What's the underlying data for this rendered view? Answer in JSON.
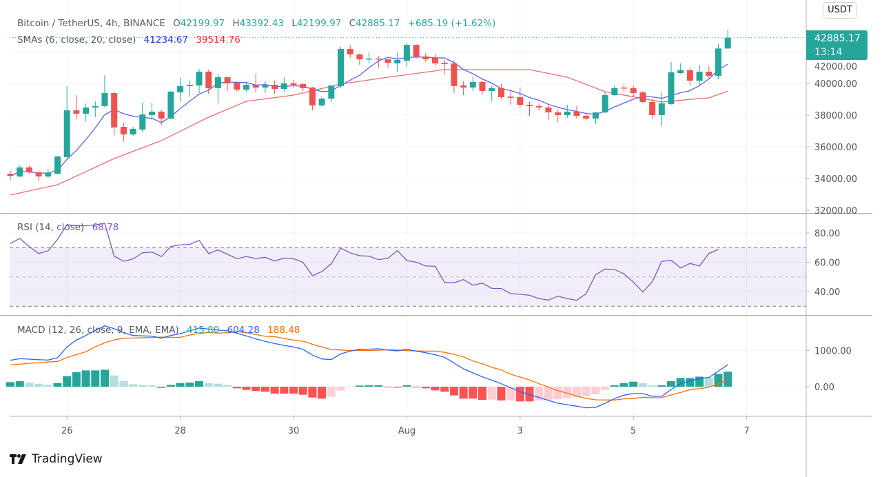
{
  "header": {
    "symbol": "Bitcoin / TetherUS, 4h, BINANCE",
    "open_label": "O",
    "open": "42199.97",
    "high_label": "H",
    "high": "43392.43",
    "low_label": "L",
    "low": "42199.97",
    "close_label": "C",
    "close": "42885.17",
    "change": "+685.19 (+1.62%)"
  },
  "sma_legend": {
    "label": "SMAs (6, close, 20, close)",
    "sma6": "41234.67",
    "sma20": "39514.76"
  },
  "rsi_legend": {
    "label": "RSI (14, close)",
    "value": "68.78"
  },
  "macd_legend": {
    "label": "MACD (12, 26, close, 9, EMA, EMA)",
    "histogram": "415.80",
    "macd": "604.28",
    "signal": "188.48"
  },
  "price_axis": {
    "currency": "USDT",
    "labels": [
      "42000.00",
      "40000.00",
      "38000.00",
      "36000.00",
      "34000.00",
      "32000.00"
    ],
    "last_price": "42885.17",
    "countdown": "13:14"
  },
  "rsi_axis": {
    "labels": [
      "80.00",
      "60.00",
      "40.00"
    ]
  },
  "macd_axis": {
    "labels": [
      "1000.00",
      "0.00"
    ]
  },
  "time_axis": [
    {
      "label": "26",
      "index": 7
    },
    {
      "label": "28",
      "index": 19
    },
    {
      "label": "30",
      "index": 31
    },
    {
      "label": "Aug",
      "index": 43
    },
    {
      "label": "3",
      "index": 55
    },
    {
      "label": "5",
      "index": 67
    },
    {
      "label": "7",
      "index": 79
    }
  ],
  "brand": "TradingView",
  "colors": {
    "up": "#26a69a",
    "down": "#ef5350",
    "sma6": "#5b62f5",
    "sma20": "#f26b6b",
    "rsi": "#7e57c2",
    "macd": "#2962ff",
    "signal": "#ff6d00",
    "hist_up_strong": "#26a69a",
    "hist_up_weak": "#b2dfdb",
    "hist_down_strong": "#ff5252",
    "hist_down_weak": "#ffcdd2"
  },
  "chart_data": [
    {
      "type": "candlestick",
      "ylim": [
        32000,
        44000
      ],
      "ohlc": [
        [
          34300,
          34480,
          33870,
          34170
        ],
        [
          34130,
          34830,
          34090,
          34700
        ],
        [
          34700,
          34830,
          34300,
          34390
        ],
        [
          34390,
          34440,
          33870,
          34130
        ],
        [
          34130,
          34610,
          34040,
          34350
        ],
        [
          34300,
          35430,
          34260,
          35390
        ],
        [
          35350,
          39830,
          35300,
          38300
        ],
        [
          38300,
          39260,
          37740,
          38090
        ],
        [
          38090,
          38740,
          37610,
          38480
        ],
        [
          38480,
          38870,
          37870,
          38570
        ],
        [
          38570,
          40520,
          38480,
          39390
        ],
        [
          39390,
          39480,
          36740,
          37220
        ],
        [
          37260,
          37520,
          36350,
          36780
        ],
        [
          36780,
          37260,
          36700,
          37130
        ],
        [
          37090,
          38780,
          36910,
          38040
        ],
        [
          38000,
          38780,
          37700,
          38220
        ],
        [
          38220,
          38350,
          37350,
          37780
        ],
        [
          37780,
          39520,
          37740,
          39480
        ],
        [
          39430,
          40350,
          38870,
          39830
        ],
        [
          39830,
          40170,
          39170,
          39910
        ],
        [
          39870,
          40910,
          39390,
          40740
        ],
        [
          40740,
          40870,
          39350,
          39700
        ],
        [
          39700,
          40610,
          38740,
          40390
        ],
        [
          40390,
          40430,
          39520,
          40000
        ],
        [
          40040,
          40130,
          39480,
          39610
        ],
        [
          39610,
          40090,
          39480,
          39910
        ],
        [
          39910,
          40610,
          39430,
          39740
        ],
        [
          39740,
          40130,
          39390,
          39910
        ],
        [
          39910,
          40170,
          39350,
          39650
        ],
        [
          39650,
          40390,
          39480,
          40000
        ],
        [
          40000,
          40220,
          39740,
          39910
        ],
        [
          39960,
          40000,
          39520,
          39700
        ],
        [
          39740,
          39780,
          38300,
          38610
        ],
        [
          38610,
          39170,
          38520,
          39040
        ],
        [
          39040,
          39870,
          38830,
          39870
        ],
        [
          39830,
          42300,
          39700,
          42170
        ],
        [
          42170,
          42430,
          41610,
          41830
        ],
        [
          41830,
          41870,
          41170,
          41520
        ],
        [
          41520,
          41960,
          41260,
          41570
        ],
        [
          41570,
          41740,
          41000,
          41520
        ],
        [
          41520,
          41570,
          41000,
          41300
        ],
        [
          41260,
          41960,
          40700,
          41480
        ],
        [
          41430,
          42570,
          41040,
          42430
        ],
        [
          42430,
          42480,
          41570,
          41700
        ],
        [
          41700,
          41910,
          41350,
          41520
        ],
        [
          41610,
          41830,
          41090,
          41260
        ],
        [
          41300,
          41480,
          40570,
          41220
        ],
        [
          41260,
          41430,
          39390,
          39830
        ],
        [
          39870,
          40130,
          39260,
          39740
        ],
        [
          39740,
          40430,
          39520,
          40090
        ],
        [
          40090,
          40170,
          39300,
          39520
        ],
        [
          39520,
          39830,
          38870,
          39700
        ],
        [
          39700,
          39960,
          39000,
          39130
        ],
        [
          39170,
          39520,
          38650,
          39090
        ],
        [
          39130,
          39740,
          38430,
          38650
        ],
        [
          38650,
          38830,
          37960,
          38570
        ],
        [
          38570,
          38740,
          38300,
          38480
        ],
        [
          38480,
          38650,
          37700,
          38170
        ],
        [
          38170,
          38350,
          37570,
          38000
        ],
        [
          38000,
          38650,
          37830,
          38220
        ],
        [
          38220,
          38570,
          37780,
          37960
        ],
        [
          37960,
          38170,
          37650,
          37780
        ],
        [
          37780,
          38170,
          37430,
          38170
        ],
        [
          38170,
          39430,
          38130,
          39260
        ],
        [
          39260,
          39870,
          39220,
          39700
        ],
        [
          39740,
          39960,
          39480,
          39700
        ],
        [
          39700,
          39870,
          39130,
          39390
        ],
        [
          39430,
          39520,
          38740,
          38830
        ],
        [
          38830,
          39000,
          37780,
          38000
        ],
        [
          38000,
          39430,
          37300,
          38740
        ],
        [
          38700,
          41350,
          38650,
          40700
        ],
        [
          40650,
          41260,
          40610,
          40830
        ],
        [
          40830,
          41000,
          39870,
          40170
        ],
        [
          40170,
          41170,
          39910,
          40740
        ],
        [
          40740,
          41090,
          40350,
          40480
        ],
        [
          40480,
          42480,
          40260,
          42199.97
        ],
        [
          42199.97,
          43392.43,
          42199.97,
          42885.17
        ]
      ],
      "sma20_samples": [
        [
          1,
          32960
        ],
        [
          6,
          33610
        ],
        [
          12,
          35260
        ],
        [
          17,
          36390
        ],
        [
          22,
          37870
        ],
        [
          26,
          38870
        ],
        [
          31,
          39260
        ],
        [
          36,
          39960
        ],
        [
          41,
          40390
        ],
        [
          47,
          40870
        ],
        [
          56,
          40870
        ],
        [
          60,
          40390
        ],
        [
          64,
          39480
        ],
        [
          70,
          38830
        ],
        [
          75,
          39090
        ],
        [
          77,
          39514.76
        ]
      ]
    },
    {
      "type": "line",
      "name": "RSI",
      "ylim": [
        20,
        90
      ],
      "bands": {
        "upper": 70,
        "middle": 50,
        "lower": 30
      },
      "values": [
        72.8,
        76.3,
        70.8,
        66,
        67.8,
        75.6,
        85.7,
        85,
        85,
        85.5,
        86.6,
        64.2,
        60.7,
        62.3,
        66.5,
        67,
        63.9,
        70.8,
        71.9,
        72.2,
        75,
        66,
        68.4,
        65.5,
        62.5,
        63.9,
        62.6,
        63.4,
        60.9,
        62.9,
        62.5,
        60,
        50.9,
        53.7,
        59,
        69.7,
        66.5,
        64.5,
        64.2,
        61.8,
        62.8,
        68,
        61.2,
        60.1,
        57.5,
        57.3,
        46.3,
        46,
        48.2,
        44.4,
        45.8,
        42.2,
        42.1,
        38.6,
        38.2,
        37.5,
        35.2,
        34.2,
        36.9,
        35.2,
        34.1,
        38.6,
        51.5,
        55.4,
        55.1,
        52.1,
        46.5,
        39.7,
        46.8,
        60.6,
        61.4,
        56.2,
        59.2,
        57.5,
        66.1,
        68.78
      ]
    },
    {
      "type": "bar+line",
      "name": "MACD",
      "ylim": [
        -1000,
        1900
      ],
      "macd": [
        728,
        772,
        760,
        745,
        734,
        798,
        1095,
        1285,
        1412,
        1550,
        1677,
        1601,
        1488,
        1412,
        1400,
        1393,
        1336,
        1412,
        1462,
        1538,
        1620,
        1589,
        1560,
        1538,
        1475,
        1400,
        1317,
        1250,
        1190,
        1140,
        1095,
        1032,
        873,
        766,
        747,
        905,
        981,
        1032,
        1035,
        1045,
        1010,
        987,
        1032,
        980,
        937,
        880,
        810,
        652,
        494,
        380,
        272,
        180,
        82,
        -30,
        -139,
        -220,
        -298,
        -377,
        -456,
        -497,
        -538,
        -582,
        -570,
        -456,
        -329,
        -234,
        -190,
        -190,
        -266,
        -266,
        -76,
        82,
        158,
        222,
        253,
        430,
        604.28
      ],
      "signal": [
        601,
        620,
        646,
        663,
        683,
        697,
        804,
        886,
        963,
        1101,
        1209,
        1291,
        1336,
        1342,
        1349,
        1355,
        1368,
        1361,
        1361,
        1424,
        1468,
        1494,
        1478,
        1487,
        1519,
        1489,
        1437,
        1389,
        1380,
        1330,
        1285,
        1254,
        1171,
        1095,
        1026,
        1013,
        994,
        1000,
        997,
        1007,
        1016,
        1012,
        994,
        986,
        981,
        981,
        949,
        893,
        823,
        709,
        633,
        534,
        462,
        343,
        266,
        185,
        82,
        -10,
        -108,
        -180,
        -259,
        -323,
        -361,
        -367,
        -367,
        -335,
        -329,
        -291,
        -304,
        -304,
        -228,
        -158,
        -82,
        -56,
        -13,
        76,
        188.48
      ],
      "histogram": [
        127,
        152,
        114,
        82,
        51,
        101,
        291,
        399,
        449,
        449,
        468,
        310,
        152,
        70,
        51,
        38,
        -32,
        51,
        101,
        114,
        152,
        95,
        82,
        51,
        -44,
        -89,
        -120,
        -139,
        -190,
        -190,
        -190,
        -222,
        -298,
        -329,
        -279,
        -108,
        -13,
        32,
        38,
        38,
        -6,
        -25,
        38,
        -6,
        -44,
        -101,
        -139,
        -241,
        -329,
        -329,
        -361,
        -354,
        -380,
        -373,
        -405,
        -405,
        -380,
        -367,
        -348,
        -317,
        -279,
        -259,
        -209,
        -89,
        38,
        101,
        139,
        101,
        38,
        38,
        152,
        240,
        240,
        278,
        266,
        354,
        415.8
      ]
    }
  ]
}
